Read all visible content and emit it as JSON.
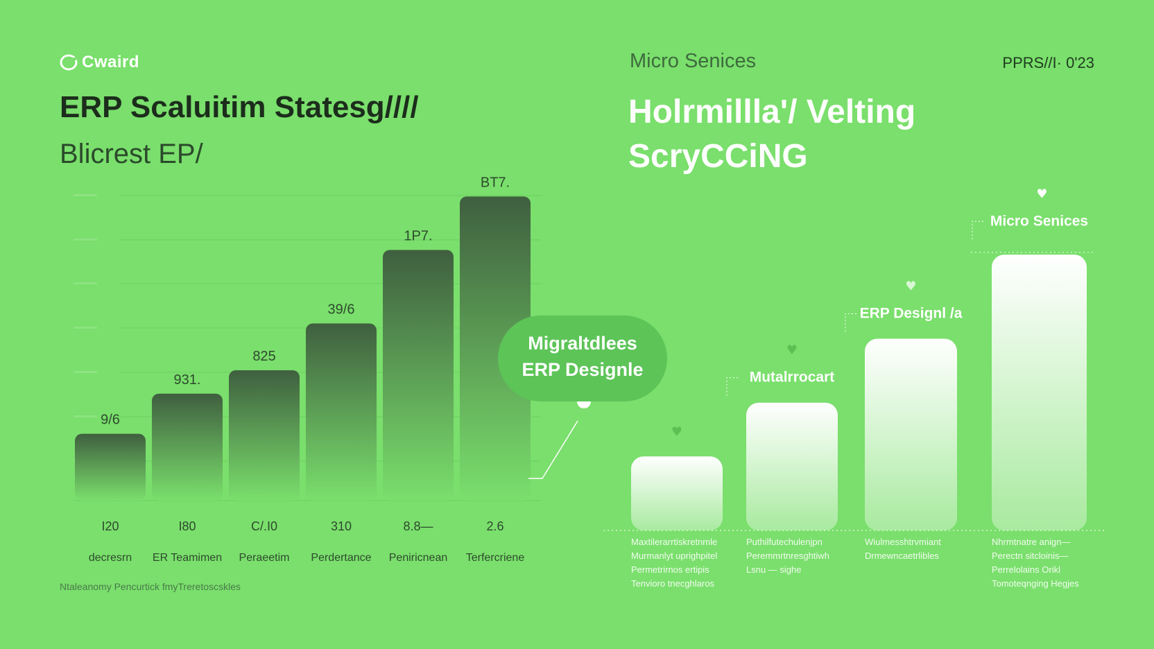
{
  "header": {
    "logo_text": "Cwaird",
    "left_title": "ERP Scaluitim Statesg////",
    "left_subtitle": "Blicrest EP/",
    "right_kicker": "Micro Senices",
    "right_date": "PPRS//I· 0'23",
    "right_title_line1": "Holrmillla'/ Velting",
    "right_title_line2": "ScryCCiNG"
  },
  "callout": {
    "line1": "Migraltdlees",
    "line2": "ERP Designle"
  },
  "footnote": "Ntaleanomy Pencurtick fmyTreretoscskles",
  "colors": {
    "background": "#7ADF6C",
    "left_bar_top": "#3f5f3f",
    "right_bar_top": "#ffffff",
    "callout": "#5DC458"
  },
  "chart_data": [
    {
      "type": "bar",
      "categories": [
        "decresrn",
        "ER Teamimen",
        "Peraeetim",
        "Perdertance",
        "Peniricnean",
        "Terfercriene"
      ],
      "tick_labels": [
        "I20",
        "I80",
        "C/.I0",
        "310",
        "8.8—",
        "2.6"
      ],
      "data_labels": [
        "9/6",
        "931.",
        "825",
        "39/6",
        "1P7.",
        "BT7."
      ],
      "values": [
        20,
        32,
        39,
        53,
        75,
        91
      ],
      "ylim": [
        0,
        100
      ],
      "grid": true
    },
    {
      "type": "bar",
      "categories": [
        "",
        "Mutalrrocart",
        "ERP Designl /a",
        "Micro Senices"
      ],
      "values": [
        22,
        38,
        57,
        82
      ],
      "ylim": [
        0,
        100
      ],
      "grid": false,
      "descriptions": [
        [
          "Maxtilerarrtiskretnmle",
          "Murmanlyt uprighpitel",
          "Permetrirnos ertipis",
          "Tenvioro tnecghlaros"
        ],
        [
          "Puthilfutechulenjpn",
          "Peremmrtnresghtiwh",
          "Lsnu — sighe"
        ],
        [
          "Wiulmesshtrvmiant",
          "Drmewncaetrlibles"
        ],
        [
          "Nhrmtnatre anign—",
          "Perectn sitcloinis—",
          "Perrelolains Orikl",
          "Tomoteqnging Hegjes"
        ]
      ]
    }
  ]
}
